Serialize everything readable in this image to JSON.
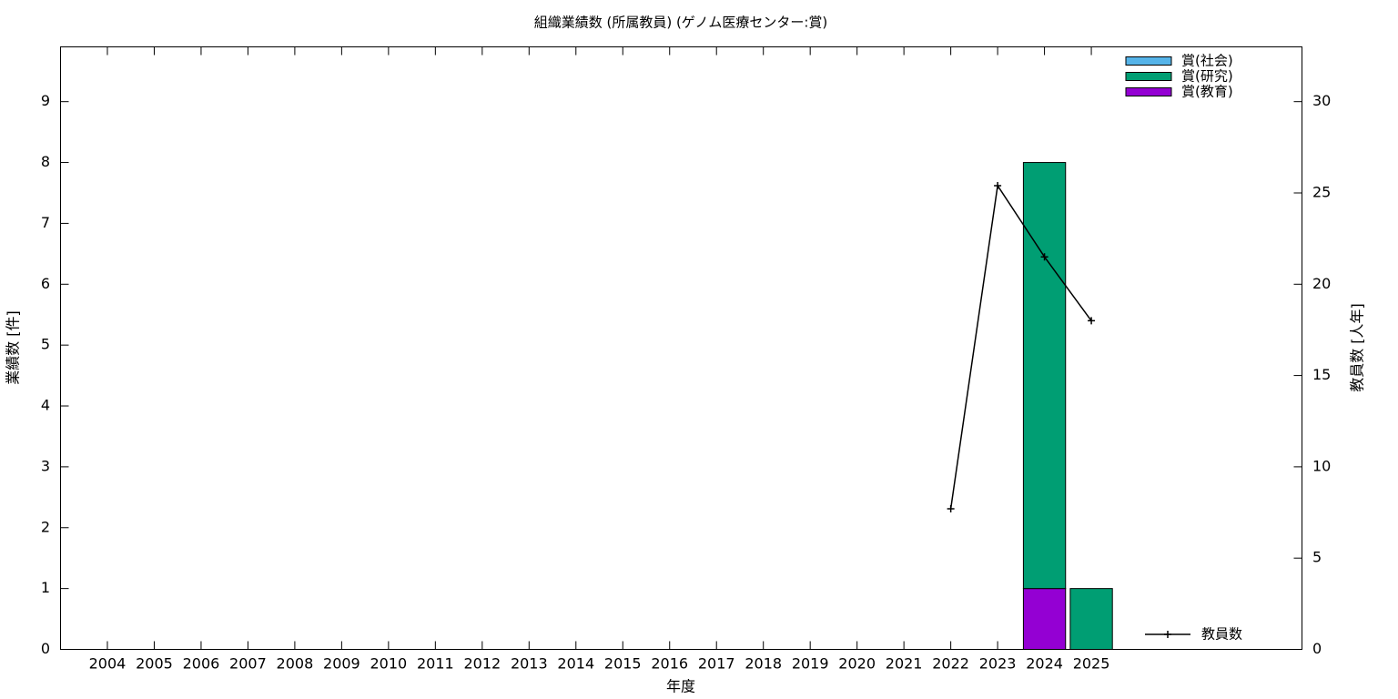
{
  "chart_data": {
    "type": "bar",
    "title": "組織業績数 (所属教員) (ゲノム医療センター:賞)",
    "x_label": "年度",
    "y_label": "業績数 [件]",
    "y2_label": "教員数 [人年]",
    "categories": [
      "2004",
      "2005",
      "2006",
      "2007",
      "2008",
      "2009",
      "2010",
      "2011",
      "2012",
      "2013",
      "2014",
      "2015",
      "2016",
      "2017",
      "2018",
      "2019",
      "2020",
      "2021",
      "2022",
      "2023",
      "2024",
      "2025"
    ],
    "stacked": true,
    "series": [
      {
        "name": "賞(教育)",
        "color": "#9400d3",
        "values": [
          0,
          0,
          0,
          0,
          0,
          0,
          0,
          0,
          0,
          0,
          0,
          0,
          0,
          0,
          0,
          0,
          0,
          0,
          0,
          0,
          1,
          0
        ]
      },
      {
        "name": "賞(研究)",
        "color": "#009e73",
        "values": [
          0,
          0,
          0,
          0,
          0,
          0,
          0,
          0,
          0,
          0,
          0,
          0,
          0,
          0,
          0,
          0,
          0,
          0,
          0,
          0,
          7,
          1
        ]
      },
      {
        "name": "賞(社会)",
        "color": "#56b4e9",
        "values": [
          0,
          0,
          0,
          0,
          0,
          0,
          0,
          0,
          0,
          0,
          0,
          0,
          0,
          0,
          0,
          0,
          0,
          0,
          0,
          0,
          0,
          0
        ]
      },
      {
        "name": "教員数",
        "type": "line",
        "axis": "y2",
        "color": "#000000",
        "values": [
          null,
          null,
          null,
          null,
          null,
          null,
          null,
          null,
          null,
          null,
          null,
          null,
          null,
          null,
          null,
          null,
          null,
          null,
          7.7,
          25.4,
          21.5,
          18.0
        ]
      }
    ],
    "ylim": [
      0,
      9.9
    ],
    "yticks": [
      0,
      1,
      2,
      3,
      4,
      5,
      6,
      7,
      8,
      9
    ],
    "y2lim": [
      0,
      33
    ],
    "y2ticks": [
      0,
      5,
      10,
      15,
      20,
      25,
      30
    ],
    "legend": "top-right"
  }
}
